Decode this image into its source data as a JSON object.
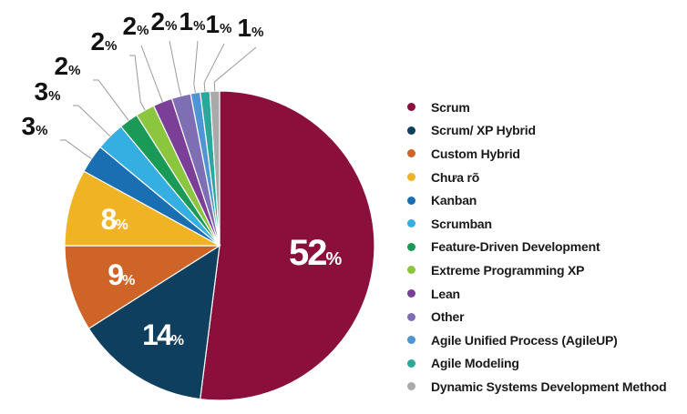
{
  "chart_data": {
    "type": "pie",
    "title": "",
    "series": [
      {
        "label": "Scrum",
        "value": 52,
        "display": "52",
        "color": "#8a0f3a"
      },
      {
        "label": "Scrum/ XP Hybrid",
        "value": 14,
        "display": "14",
        "color": "#0e3f5f"
      },
      {
        "label": "Custom Hybrid",
        "value": 9,
        "display": "9",
        "color": "#cf6428"
      },
      {
        "label": "Chưa rõ",
        "value": 8,
        "display": "8",
        "color": "#f0b323"
      },
      {
        "label": "Kanban",
        "value": 3,
        "display": "3",
        "color": "#1a6fb3"
      },
      {
        "label": "Scrumban",
        "value": 3,
        "display": "3",
        "color": "#35aee2"
      },
      {
        "label": "Feature-Driven Development",
        "value": 2,
        "display": "2",
        "color": "#1a9a57"
      },
      {
        "label": "Extreme Programming XP",
        "value": 2,
        "display": "2",
        "color": "#8cc63f"
      },
      {
        "label": "Lean",
        "value": 2,
        "display": "2",
        "color": "#7b3f98"
      },
      {
        "label": "Other",
        "value": 2,
        "display": "2",
        "color": "#7e6fb5"
      },
      {
        "label": "Agile Unified Process (AgileUP)",
        "value": 1,
        "display": "1",
        "color": "#4f95d3"
      },
      {
        "label": "Agile Modeling",
        "value": 1,
        "display": "1",
        "color": "#2aa89a"
      },
      {
        "label": "Dynamic Systems Development Method",
        "value": 1,
        "display": "1",
        "color": "#a9a9a9"
      }
    ],
    "value_suffix": "%",
    "legend_position": "right"
  }
}
